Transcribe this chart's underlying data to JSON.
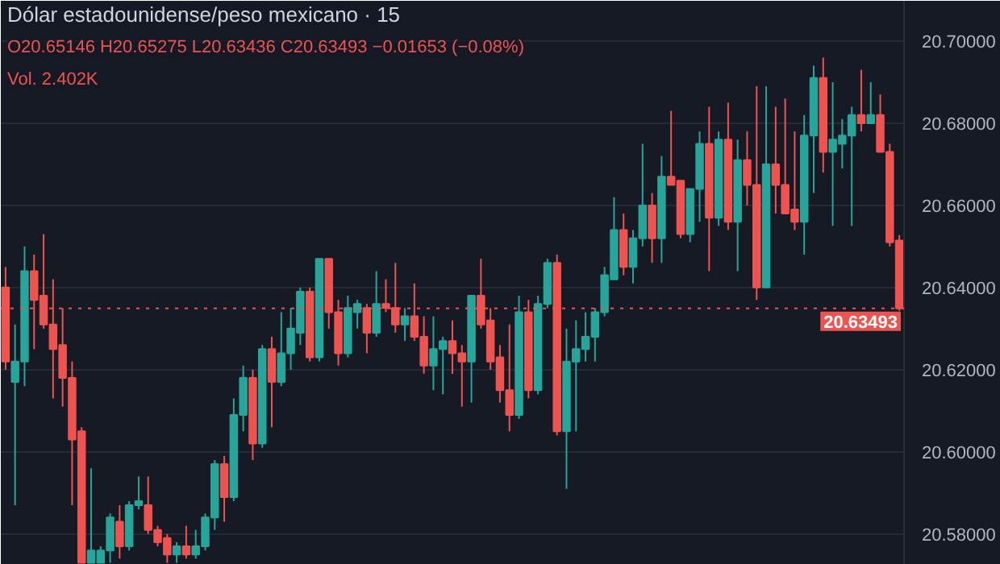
{
  "chart_data": {
    "type": "candlestick",
    "title": "Dólar estadounidense/peso mexicano · 15",
    "annotations": [
      "O20.65146 H20.65275 L20.63436 C20.63493 −0.01653 (−0.08%)",
      "Vol. 2.402K"
    ],
    "categories": [
      null,
      null,
      null,
      null,
      null,
      null,
      null,
      null,
      null,
      null,
      null,
      null,
      null,
      null,
      null,
      null,
      null,
      null,
      null,
      null,
      null,
      null,
      null,
      null,
      null,
      null,
      null,
      null,
      null,
      null,
      null,
      null,
      null,
      null,
      null,
      null,
      null,
      null,
      null,
      null,
      null,
      null,
      null,
      null,
      null,
      null,
      null,
      null,
      null,
      null,
      null,
      null,
      null,
      null,
      null,
      null,
      null,
      null,
      null,
      null,
      null,
      null,
      null,
      null,
      null,
      null,
      null,
      null,
      null,
      null,
      null,
      null,
      null,
      null,
      null,
      null,
      null,
      null,
      null,
      null,
      null,
      null,
      null,
      null,
      null,
      null,
      null,
      null,
      null,
      null,
      null,
      null,
      null,
      null,
      null
    ],
    "ohlc": [
      [
        20.64,
        20.645,
        20.62,
        20.622
      ],
      [
        20.617,
        20.631,
        20.587,
        20.622
      ],
      [
        20.622,
        20.65,
        20.616,
        20.644
      ],
      [
        20.644,
        20.648,
        20.625,
        20.637
      ],
      [
        20.638,
        20.653,
        20.63,
        20.631
      ],
      [
        20.631,
        20.642,
        20.613,
        20.625
      ],
      [
        20.626,
        20.635,
        20.611,
        20.618
      ],
      [
        20.618,
        20.622,
        20.587,
        20.603
      ],
      [
        20.605,
        20.606,
        20.573,
        20.573
      ],
      [
        20.573,
        20.596,
        20.573,
        20.576
      ],
      [
        20.573,
        20.577,
        20.573,
        20.576
      ],
      [
        20.576,
        20.585,
        20.573,
        20.584
      ],
      [
        20.583,
        20.587,
        20.574,
        20.577
      ],
      [
        20.577,
        20.588,
        20.576,
        20.587
      ],
      [
        20.587,
        20.594,
        20.586,
        20.588
      ],
      [
        20.587,
        20.594,
        20.58,
        20.581
      ],
      [
        20.581,
        20.582,
        20.577,
        20.578
      ],
      [
        20.579,
        20.58,
        20.573,
        20.575
      ],
      [
        20.575,
        20.578,
        20.573,
        20.577
      ],
      [
        20.577,
        20.582,
        20.574,
        20.575
      ],
      [
        20.575,
        20.581,
        20.574,
        20.577
      ],
      [
        20.577,
        20.585,
        20.576,
        20.584
      ],
      [
        20.584,
        20.598,
        20.581,
        20.597
      ],
      [
        20.597,
        20.599,
        20.583,
        20.589
      ],
      [
        20.589,
        20.613,
        20.588,
        20.609
      ],
      [
        20.609,
        20.621,
        20.605,
        20.618
      ],
      [
        20.618,
        20.62,
        20.598,
        20.602
      ],
      [
        20.602,
        20.626,
        20.601,
        20.625
      ],
      [
        20.625,
        20.628,
        20.606,
        20.617
      ],
      [
        20.617,
        20.634,
        20.616,
        20.624
      ],
      [
        20.624,
        20.635,
        20.62,
        20.63
      ],
      [
        20.629,
        20.64,
        20.626,
        20.639
      ],
      [
        20.639,
        20.64,
        20.622,
        20.623
      ],
      [
        20.623,
        20.647,
        20.622,
        20.647
      ],
      [
        20.647,
        20.647,
        20.63,
        20.634
      ],
      [
        20.634,
        20.637,
        20.621,
        20.624
      ],
      [
        20.624,
        20.638,
        20.623,
        20.635
      ],
      [
        20.634,
        20.637,
        20.63,
        20.636
      ],
      [
        20.635,
        20.636,
        20.624,
        20.629
      ],
      [
        20.629,
        20.644,
        20.628,
        20.636
      ],
      [
        20.636,
        20.642,
        20.634,
        20.635
      ],
      [
        20.635,
        20.646,
        20.629,
        20.631
      ],
      [
        20.631,
        20.635,
        20.627,
        20.633
      ],
      [
        20.633,
        20.641,
        20.627,
        20.628
      ],
      [
        20.628,
        20.633,
        20.619,
        20.621
      ],
      [
        20.621,
        20.633,
        20.615,
        20.625
      ],
      [
        20.625,
        20.628,
        20.614,
        20.627
      ],
      [
        20.627,
        20.632,
        20.619,
        20.624
      ],
      [
        20.624,
        20.626,
        20.611,
        20.622
      ],
      [
        20.622,
        20.638,
        20.612,
        20.638
      ],
      [
        20.638,
        20.647,
        20.63,
        20.631
      ],
      [
        20.632,
        20.635,
        20.62,
        20.622
      ],
      [
        20.623,
        20.626,
        20.612,
        20.615
      ],
      [
        20.615,
        20.631,
        20.605,
        20.609
      ],
      [
        20.609,
        20.638,
        20.608,
        20.634
      ],
      [
        20.634,
        20.637,
        20.613,
        20.615
      ],
      [
        20.615,
        20.638,
        20.614,
        20.636
      ],
      [
        20.636,
        20.647,
        20.635,
        20.646
      ],
      [
        20.646,
        20.648,
        20.604,
        20.605
      ],
      [
        20.605,
        20.63,
        20.591,
        20.622
      ],
      [
        20.622,
        20.632,
        20.605,
        20.625
      ],
      [
        20.625,
        20.634,
        20.622,
        20.628
      ],
      [
        20.628,
        20.635,
        20.622,
        20.634
      ],
      [
        20.634,
        20.645,
        20.633,
        20.643
      ],
      [
        20.642,
        20.662,
        20.642,
        20.654
      ],
      [
        20.654,
        20.658,
        20.643,
        20.645
      ],
      [
        20.645,
        20.654,
        20.641,
        20.652
      ],
      [
        20.652,
        20.675,
        20.65,
        20.66
      ],
      [
        20.66,
        20.663,
        20.646,
        20.652
      ],
      [
        20.652,
        20.672,
        20.646,
        20.667
      ],
      [
        20.667,
        20.683,
        20.665,
        20.665
      ],
      [
        20.666,
        20.666,
        20.652,
        20.653
      ],
      [
        20.653,
        20.664,
        20.651,
        20.664
      ],
      [
        20.664,
        20.678,
        20.656,
        20.675
      ],
      [
        20.675,
        20.684,
        20.644,
        20.657
      ],
      [
        20.657,
        20.678,
        20.655,
        20.676
      ],
      [
        20.676,
        20.685,
        20.654,
        20.656
      ],
      [
        20.656,
        20.676,
        20.644,
        20.671
      ],
      [
        20.671,
        20.678,
        20.66,
        20.665
      ],
      [
        20.665,
        20.689,
        20.637,
        20.64
      ],
      [
        20.64,
        20.689,
        20.64,
        20.67
      ],
      [
        20.67,
        20.684,
        20.658,
        20.665
      ],
      [
        20.665,
        20.686,
        20.658,
        20.658
      ],
      [
        20.659,
        20.678,
        20.654,
        20.656
      ],
      [
        20.656,
        20.682,
        20.648,
        20.677
      ],
      [
        20.677,
        20.694,
        20.663,
        20.691
      ],
      [
        20.691,
        20.696,
        20.668,
        20.673
      ],
      [
        20.673,
        20.69,
        20.655,
        20.676
      ],
      [
        20.675,
        20.681,
        20.669,
        20.677
      ],
      [
        20.677,
        20.684,
        20.655,
        20.682
      ],
      [
        20.682,
        20.693,
        20.678,
        20.68
      ],
      [
        20.68,
        20.69,
        20.68,
        20.682
      ],
      [
        20.682,
        20.687,
        20.673,
        20.673
      ],
      [
        20.673,
        20.675,
        20.65,
        20.651
      ],
      [
        20.65146,
        20.65275,
        20.63436,
        20.63493
      ]
    ],
    "colors": [
      "#ef5350",
      "#26a69a",
      "#26a69a",
      "#ef5350",
      "#ef5350",
      "#ef5350",
      "#ef5350",
      "#ef5350",
      "#ef5350",
      "#26a69a",
      "#26a69a",
      "#26a69a",
      "#ef5350",
      "#26a69a",
      "#26a69a",
      "#ef5350",
      "#ef5350",
      "#ef5350",
      "#26a69a",
      "#ef5350",
      "#26a69a",
      "#26a69a",
      "#26a69a",
      "#ef5350",
      "#26a69a",
      "#26a69a",
      "#ef5350",
      "#26a69a",
      "#ef5350",
      "#26a69a",
      "#26a69a",
      "#26a69a",
      "#ef5350",
      "#26a69a",
      "#ef5350",
      "#ef5350",
      "#26a69a",
      "#26a69a",
      "#ef5350",
      "#26a69a",
      "#ef5350",
      "#ef5350",
      "#26a69a",
      "#ef5350",
      "#ef5350",
      "#26a69a",
      "#26a69a",
      "#ef5350",
      "#ef5350",
      "#26a69a",
      "#ef5350",
      "#ef5350",
      "#ef5350",
      "#ef5350",
      "#26a69a",
      "#ef5350",
      "#26a69a",
      "#26a69a",
      "#ef5350",
      "#26a69a",
      "#26a69a",
      "#26a69a",
      "#26a69a",
      "#26a69a",
      "#26a69a",
      "#ef5350",
      "#26a69a",
      "#26a69a",
      "#ef5350",
      "#26a69a",
      "#ef5350",
      "#ef5350",
      "#26a69a",
      "#26a69a",
      "#ef5350",
      "#26a69a",
      "#ef5350",
      "#26a69a",
      "#ef5350",
      "#ef5350",
      "#26a69a",
      "#ef5350",
      "#ef5350",
      "#ef5350",
      "#26a69a",
      "#26a69a",
      "#ef5350",
      "#26a69a",
      "#26a69a",
      "#26a69a",
      "#ef5350",
      "#26a69a",
      "#ef5350",
      "#ef5350",
      "#ef5350"
    ],
    "ylim": [
      20.5725,
      20.7098
    ],
    "yticks": [
      {
        "value": 20.58,
        "label": "20.58000"
      },
      {
        "value": 20.6,
        "label": "20.60000"
      },
      {
        "value": 20.62,
        "label": "20.62000"
      },
      {
        "value": 20.64,
        "label": "20.64000"
      },
      {
        "value": 20.66,
        "label": "20.66000"
      },
      {
        "value": 20.68,
        "label": "20.68000"
      },
      {
        "value": 20.7,
        "label": "20.70000"
      }
    ],
    "ref_lines": [
      {
        "axis": "y",
        "value": 20.63493,
        "label": "20.63493",
        "color": "#ef5350",
        "line_style": "dotted"
      }
    ],
    "grid": "y"
  }
}
